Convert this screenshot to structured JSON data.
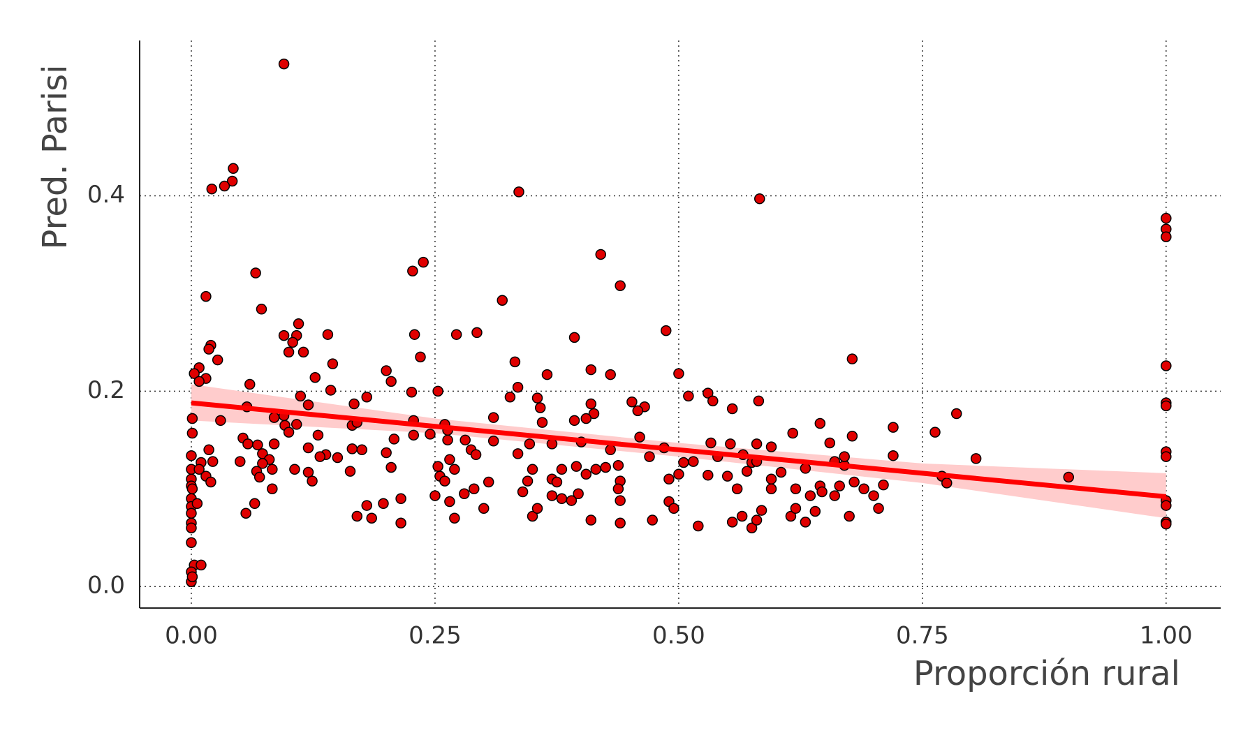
{
  "chart_data": {
    "type": "scatter",
    "x_label": "Proporción rural",
    "y_label": "Pred. Parisi",
    "xlim": [
      -0.053,
      1.056
    ],
    "ylim": [
      -0.022,
      0.559
    ],
    "xticks": [
      {
        "value": 0,
        "label": "0.00"
      },
      0.25,
      {
        "value": 0.5,
        "label": "0.50"
      },
      0.75,
      {
        "value": 1,
        "label": "1.00"
      }
    ],
    "yticks": [
      {
        "value": 0,
        "label": "0.0"
      },
      0.2,
      0.4
    ],
    "grid": true,
    "color": "#e00000",
    "x": [
      0.095,
      0.043,
      0.042,
      0.034,
      0.021,
      0.336,
      0.583,
      1.0,
      1.0,
      1.0,
      0.42,
      0.238,
      0.227,
      0.066,
      0.44,
      0.015,
      0.319,
      0.072,
      0.11,
      0.487,
      0.095,
      0.108,
      0.14,
      0.229,
      0.272,
      0.293,
      0.393,
      0.104,
      0.02,
      0.018,
      0.1,
      0.115,
      0.027,
      0.235,
      0.332,
      0.145,
      0.678,
      0.41,
      0.2,
      0.008,
      0.003,
      0.43,
      0.5,
      0.365,
      0.015,
      0.127,
      0.205,
      0.06,
      0.335,
      0.008,
      0.143,
      0.226,
      0.253,
      0.582,
      0.53,
      0.51,
      0.112,
      0.18,
      0.327,
      0.355,
      0.535,
      0.167,
      0.12,
      0.41,
      0.452,
      1.0,
      1.0,
      1.0,
      0.057,
      0.358,
      0.465,
      0.458,
      0.555,
      0.413,
      0.785,
      0.095,
      0.03,
      0.001,
      0.085,
      0.31,
      0.405,
      0.393,
      0.165,
      0.108,
      0.228,
      0.263,
      0.36,
      0.17,
      0.26,
      0.645,
      0.72,
      0.096,
      0.1,
      0.228,
      0.245,
      0.001,
      0.763,
      0.617,
      0.678,
      0.13,
      0.138,
      0.018,
      0.053,
      0.208,
      0.263,
      0.31,
      0.281,
      0.347,
      0.37,
      0.4,
      0.46,
      0.058,
      0.068,
      0.085,
      0.12,
      0.165,
      0.175,
      0.2,
      0.287,
      0.335,
      0.43,
      0.485,
      0.533,
      0.553,
      0.58,
      0.595,
      0.655,
      0.0,
      0.0,
      0.01,
      0.022,
      0.05,
      0.073,
      0.08,
      0.073,
      0.106,
      0.15,
      0.132,
      0.205,
      0.253,
      0.265,
      0.27,
      0.292,
      0.38,
      0.395,
      0.415,
      0.425,
      0.438,
      0.47,
      0.505,
      0.515,
      0.54,
      0.566,
      0.575,
      0.58,
      0.605,
      0.63,
      0.66,
      0.67,
      0.67,
      0.72,
      0.805,
      1.0,
      1.0,
      0.0,
      0.0,
      0.001,
      0.015,
      0.02,
      0.008,
      0.067,
      0.07,
      0.083,
      0.12,
      0.124,
      0.163,
      0.185,
      0.255,
      0.26,
      0.29,
      0.305,
      0.35,
      0.345,
      0.37,
      0.375,
      0.405,
      0.44,
      0.438,
      0.49,
      0.5,
      0.53,
      0.55,
      0.57,
      0.595,
      0.595,
      0.56,
      0.62,
      0.645,
      0.647,
      0.665,
      0.68,
      0.69,
      0.7,
      0.71,
      0.77,
      0.775,
      0.9,
      0.0,
      0.0,
      0.0,
      0.0,
      0.0,
      0.006,
      0.056,
      0.065,
      0.083,
      0.17,
      0.18,
      0.197,
      0.215,
      0.215,
      0.25,
      0.265,
      0.27,
      0.28,
      0.3,
      0.34,
      0.35,
      0.355,
      0.37,
      0.38,
      0.39,
      0.397,
      0.41,
      0.44,
      0.44,
      0.473,
      0.49,
      0.495,
      0.52,
      0.555,
      0.565,
      0.575,
      0.58,
      0.585,
      0.615,
      0.62,
      0.63,
      0.635,
      0.64,
      0.66,
      0.675,
      0.705,
      1.0,
      1.0,
      1.0,
      1.0,
      0.0,
      0.003,
      0.01,
      0.0,
      0.0,
      0.001
    ],
    "values": [
      0.535,
      0.428,
      0.415,
      0.41,
      0.407,
      0.404,
      0.397,
      0.377,
      0.366,
      0.358,
      0.34,
      0.332,
      0.323,
      0.321,
      0.308,
      0.297,
      0.293,
      0.284,
      0.269,
      0.262,
      0.257,
      0.257,
      0.258,
      0.258,
      0.258,
      0.26,
      0.255,
      0.25,
      0.247,
      0.243,
      0.24,
      0.24,
      0.232,
      0.235,
      0.23,
      0.228,
      0.233,
      0.222,
      0.221,
      0.224,
      0.218,
      0.217,
      0.218,
      0.217,
      0.213,
      0.214,
      0.21,
      0.207,
      0.204,
      0.21,
      0.201,
      0.199,
      0.2,
      0.19,
      0.198,
      0.195,
      0.195,
      0.194,
      0.194,
      0.193,
      0.19,
      0.187,
      0.186,
      0.187,
      0.189,
      0.226,
      0.188,
      0.185,
      0.184,
      0.183,
      0.184,
      0.18,
      0.182,
      0.177,
      0.177,
      0.175,
      0.17,
      0.172,
      0.173,
      0.173,
      0.172,
      0.17,
      0.165,
      0.166,
      0.17,
      0.16,
      0.168,
      0.168,
      0.166,
      0.167,
      0.163,
      0.165,
      0.158,
      0.155,
      0.156,
      0.157,
      0.158,
      0.157,
      0.154,
      0.155,
      0.135,
      0.14,
      0.152,
      0.151,
      0.15,
      0.149,
      0.15,
      0.146,
      0.146,
      0.148,
      0.153,
      0.146,
      0.145,
      0.146,
      0.142,
      0.141,
      0.14,
      0.137,
      0.14,
      0.136,
      0.14,
      0.142,
      0.147,
      0.146,
      0.146,
      0.143,
      0.147,
      0.134,
      0.12,
      0.127,
      0.128,
      0.128,
      0.136,
      0.13,
      0.126,
      0.12,
      0.132,
      0.133,
      0.122,
      0.123,
      0.13,
      0.12,
      0.135,
      0.12,
      0.123,
      0.12,
      0.122,
      0.124,
      0.133,
      0.127,
      0.128,
      0.133,
      0.135,
      0.127,
      0.128,
      0.117,
      0.121,
      0.128,
      0.124,
      0.133,
      0.134,
      0.131,
      0.138,
      0.133,
      0.11,
      0.103,
      0.1,
      0.113,
      0.107,
      0.12,
      0.118,
      0.112,
      0.12,
      0.117,
      0.108,
      0.118,
      0.07,
      0.113,
      0.108,
      0.1,
      0.107,
      0.12,
      0.108,
      0.11,
      0.107,
      0.115,
      0.108,
      0.1,
      0.11,
      0.115,
      0.114,
      0.113,
      0.118,
      0.11,
      0.1,
      0.1,
      0.1,
      0.103,
      0.097,
      0.103,
      0.107,
      0.1,
      0.093,
      0.104,
      0.113,
      0.106,
      0.112,
      0.09,
      0.082,
      0.075,
      0.065,
      0.06,
      0.085,
      0.075,
      0.085,
      0.1,
      0.072,
      0.083,
      0.085,
      0.09,
      0.065,
      0.093,
      0.087,
      0.07,
      0.095,
      0.08,
      0.097,
      0.072,
      0.08,
      0.093,
      0.09,
      0.088,
      0.095,
      0.068,
      0.088,
      0.065,
      0.068,
      0.087,
      0.08,
      0.062,
      0.066,
      0.072,
      0.06,
      0.068,
      0.078,
      0.072,
      0.08,
      0.066,
      0.093,
      0.077,
      0.093,
      0.072,
      0.08,
      0.088,
      0.083,
      0.066,
      0.064,
      0.045,
      0.022,
      0.022,
      0.015,
      0.005,
      0.01
    ],
    "fit": {
      "color": "#ff0000",
      "band_color": "#ffcccc",
      "x": [
        0,
        0.25,
        0.5,
        0.75,
        1
      ],
      "values": [
        0.188,
        0.164,
        0.14,
        0.116,
        0.092
      ],
      "lower": [
        0.17,
        0.157,
        0.133,
        0.106,
        0.07
      ],
      "upper": [
        0.207,
        0.172,
        0.147,
        0.126,
        0.116
      ]
    }
  }
}
